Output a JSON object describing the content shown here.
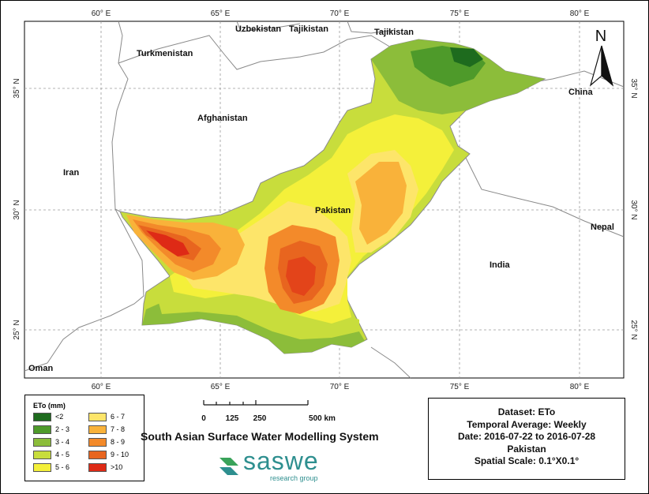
{
  "map": {
    "longitude_ticks": [
      "60° E",
      "65° E",
      "70° E",
      "75° E",
      "80° E"
    ],
    "latitude_ticks": [
      "35° N",
      "30° N",
      "25° N"
    ],
    "countries": [
      "Uzbekistan",
      "Tajikistan",
      "Tajikistan",
      "Turkmenistan",
      "Afghanistan",
      "Iran",
      "Pakistan",
      "India",
      "China",
      "Nepal",
      "Oman"
    ],
    "north_arrow_label": "N"
  },
  "legend": {
    "title": "ETo (mm)",
    "items": [
      {
        "label": "<2",
        "color": "#1e6b1e"
      },
      {
        "label": "2 - 3",
        "color": "#4e9a2a"
      },
      {
        "label": "3 - 4",
        "color": "#8cbd3a"
      },
      {
        "label": "4 - 5",
        "color": "#c8dd3c"
      },
      {
        "label": "5 - 6",
        "color": "#f4f03a"
      },
      {
        "label": "6 - 7",
        "color": "#fde56a"
      },
      {
        "label": "7 - 8",
        "color": "#f9b23a"
      },
      {
        "label": "8 - 9",
        "color": "#f38a2a"
      },
      {
        "label": "9 - 10",
        "color": "#e8651f"
      },
      {
        "label": ">10",
        "color": "#de2a16"
      }
    ]
  },
  "scale_bar": {
    "labels": [
      "0",
      "125",
      "250",
      "500 km"
    ]
  },
  "footer": {
    "system_title": "South Asian Surface Water Modelling System",
    "logo_word": "saswe",
    "logo_subtitle": "research group"
  },
  "info": {
    "dataset": "Dataset: ETo",
    "temporal_average": "Temporal Average: Weekly",
    "date": "Date: 2016-07-22 to 2016-07-28",
    "region": "Pakistan",
    "spatial_scale": "Spatial Scale: 0.1°X0.1°"
  }
}
